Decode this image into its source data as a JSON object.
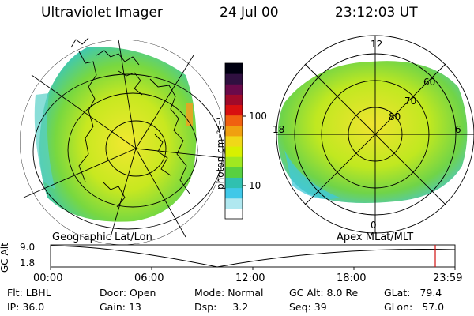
{
  "header": {
    "title": "Ultraviolet Imager",
    "date": "24 Jul 00",
    "time": "23:12:03 UT"
  },
  "colorbar": {
    "unit": "photon cm⁻²s⁻¹",
    "ticks": [
      "100",
      "10"
    ],
    "colors": [
      "#000010",
      "#301040",
      "#6a0a4a",
      "#a00a2a",
      "#d81010",
      "#f06010",
      "#f0a010",
      "#f0d818",
      "#d8f000",
      "#a0e820",
      "#58d040",
      "#30c0b0",
      "#40c8e8",
      "#b0e8f0",
      "#ffffff"
    ]
  },
  "left_panel": {
    "caption": "Geographic Lat/Lon"
  },
  "right_panel": {
    "caption": "Apex MLat/MLT",
    "mlt_labels": {
      "top": "12",
      "bottom": "0",
      "left": "18",
      "right": "6"
    },
    "lat_labels": [
      "60",
      "70",
      "80"
    ]
  },
  "altitude_plot": {
    "ylabel": "GC Alt",
    "yticks": [
      "9.0",
      "1.8"
    ],
    "xticks": [
      "00:00",
      "06:00",
      "12:00",
      "18:00",
      "23:59"
    ],
    "marker_color": "#d01010"
  },
  "footer": {
    "row1": [
      {
        "label": "Flt:",
        "value": "LBHL"
      },
      {
        "label": "Door:",
        "value": "Open"
      },
      {
        "label": "Mode:",
        "value": "Normal"
      },
      {
        "label": "GC Alt:",
        "value": "8.0 Re"
      },
      {
        "label": "GLat:",
        "value": "79.4"
      }
    ],
    "row2": [
      {
        "label": "IP:",
        "value": "36.0"
      },
      {
        "label": "Gain:",
        "value": "13"
      },
      {
        "label": "Dsp:",
        "value": "3.2"
      },
      {
        "label": "Seq:",
        "value": "39"
      },
      {
        "label": "GLon:",
        "value": "57.0"
      }
    ]
  }
}
